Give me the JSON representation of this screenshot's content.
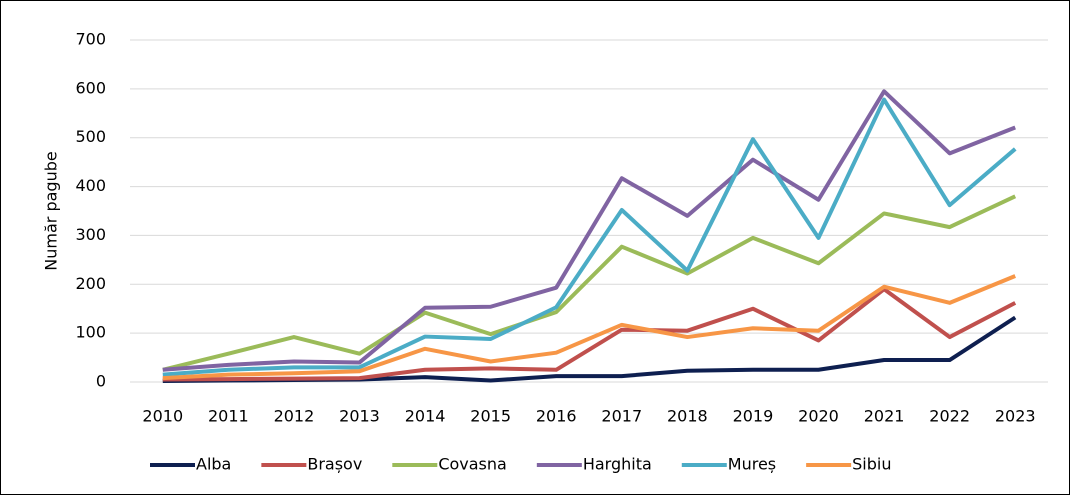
{
  "chart_data": {
    "type": "line",
    "y_label": "Număr pagube",
    "categories": [
      "2010",
      "2011",
      "2012",
      "2013",
      "2014",
      "2015",
      "2016",
      "2017",
      "2018",
      "2019",
      "2020",
      "2021",
      "2022",
      "2023"
    ],
    "ylim": [
      0,
      700
    ],
    "yticks": [
      0,
      100,
      200,
      300,
      400,
      500,
      600,
      700
    ],
    "grid": true,
    "legend": "bottom",
    "series": [
      {
        "name": "Alba",
        "color": "#0e1f50",
        "values": [
          2,
          3,
          4,
          5,
          10,
          3,
          12,
          12,
          23,
          25,
          25,
          45,
          45,
          132
        ]
      },
      {
        "name": "Brașov",
        "color": "#c0504d",
        "values": [
          5,
          6,
          7,
          8,
          25,
          28,
          25,
          107,
          105,
          150,
          85,
          190,
          92,
          162
        ]
      },
      {
        "name": "Covasna",
        "color": "#9bbb59",
        "values": [
          25,
          58,
          92,
          58,
          142,
          98,
          143,
          277,
          222,
          295,
          243,
          345,
          317,
          380
        ]
      },
      {
        "name": "Harghita",
        "color": "#8064a2",
        "values": [
          25,
          35,
          42,
          40,
          152,
          154,
          193,
          417,
          340,
          455,
          373,
          595,
          468,
          521
        ]
      },
      {
        "name": "Mureș",
        "color": "#4bacc6",
        "values": [
          15,
          25,
          30,
          30,
          93,
          88,
          153,
          352,
          228,
          497,
          295,
          578,
          362,
          477
        ]
      },
      {
        "name": "Sibiu",
        "color": "#f79646",
        "values": [
          8,
          15,
          18,
          22,
          68,
          42,
          60,
          117,
          92,
          110,
          105,
          195,
          162,
          217
        ]
      }
    ]
  }
}
